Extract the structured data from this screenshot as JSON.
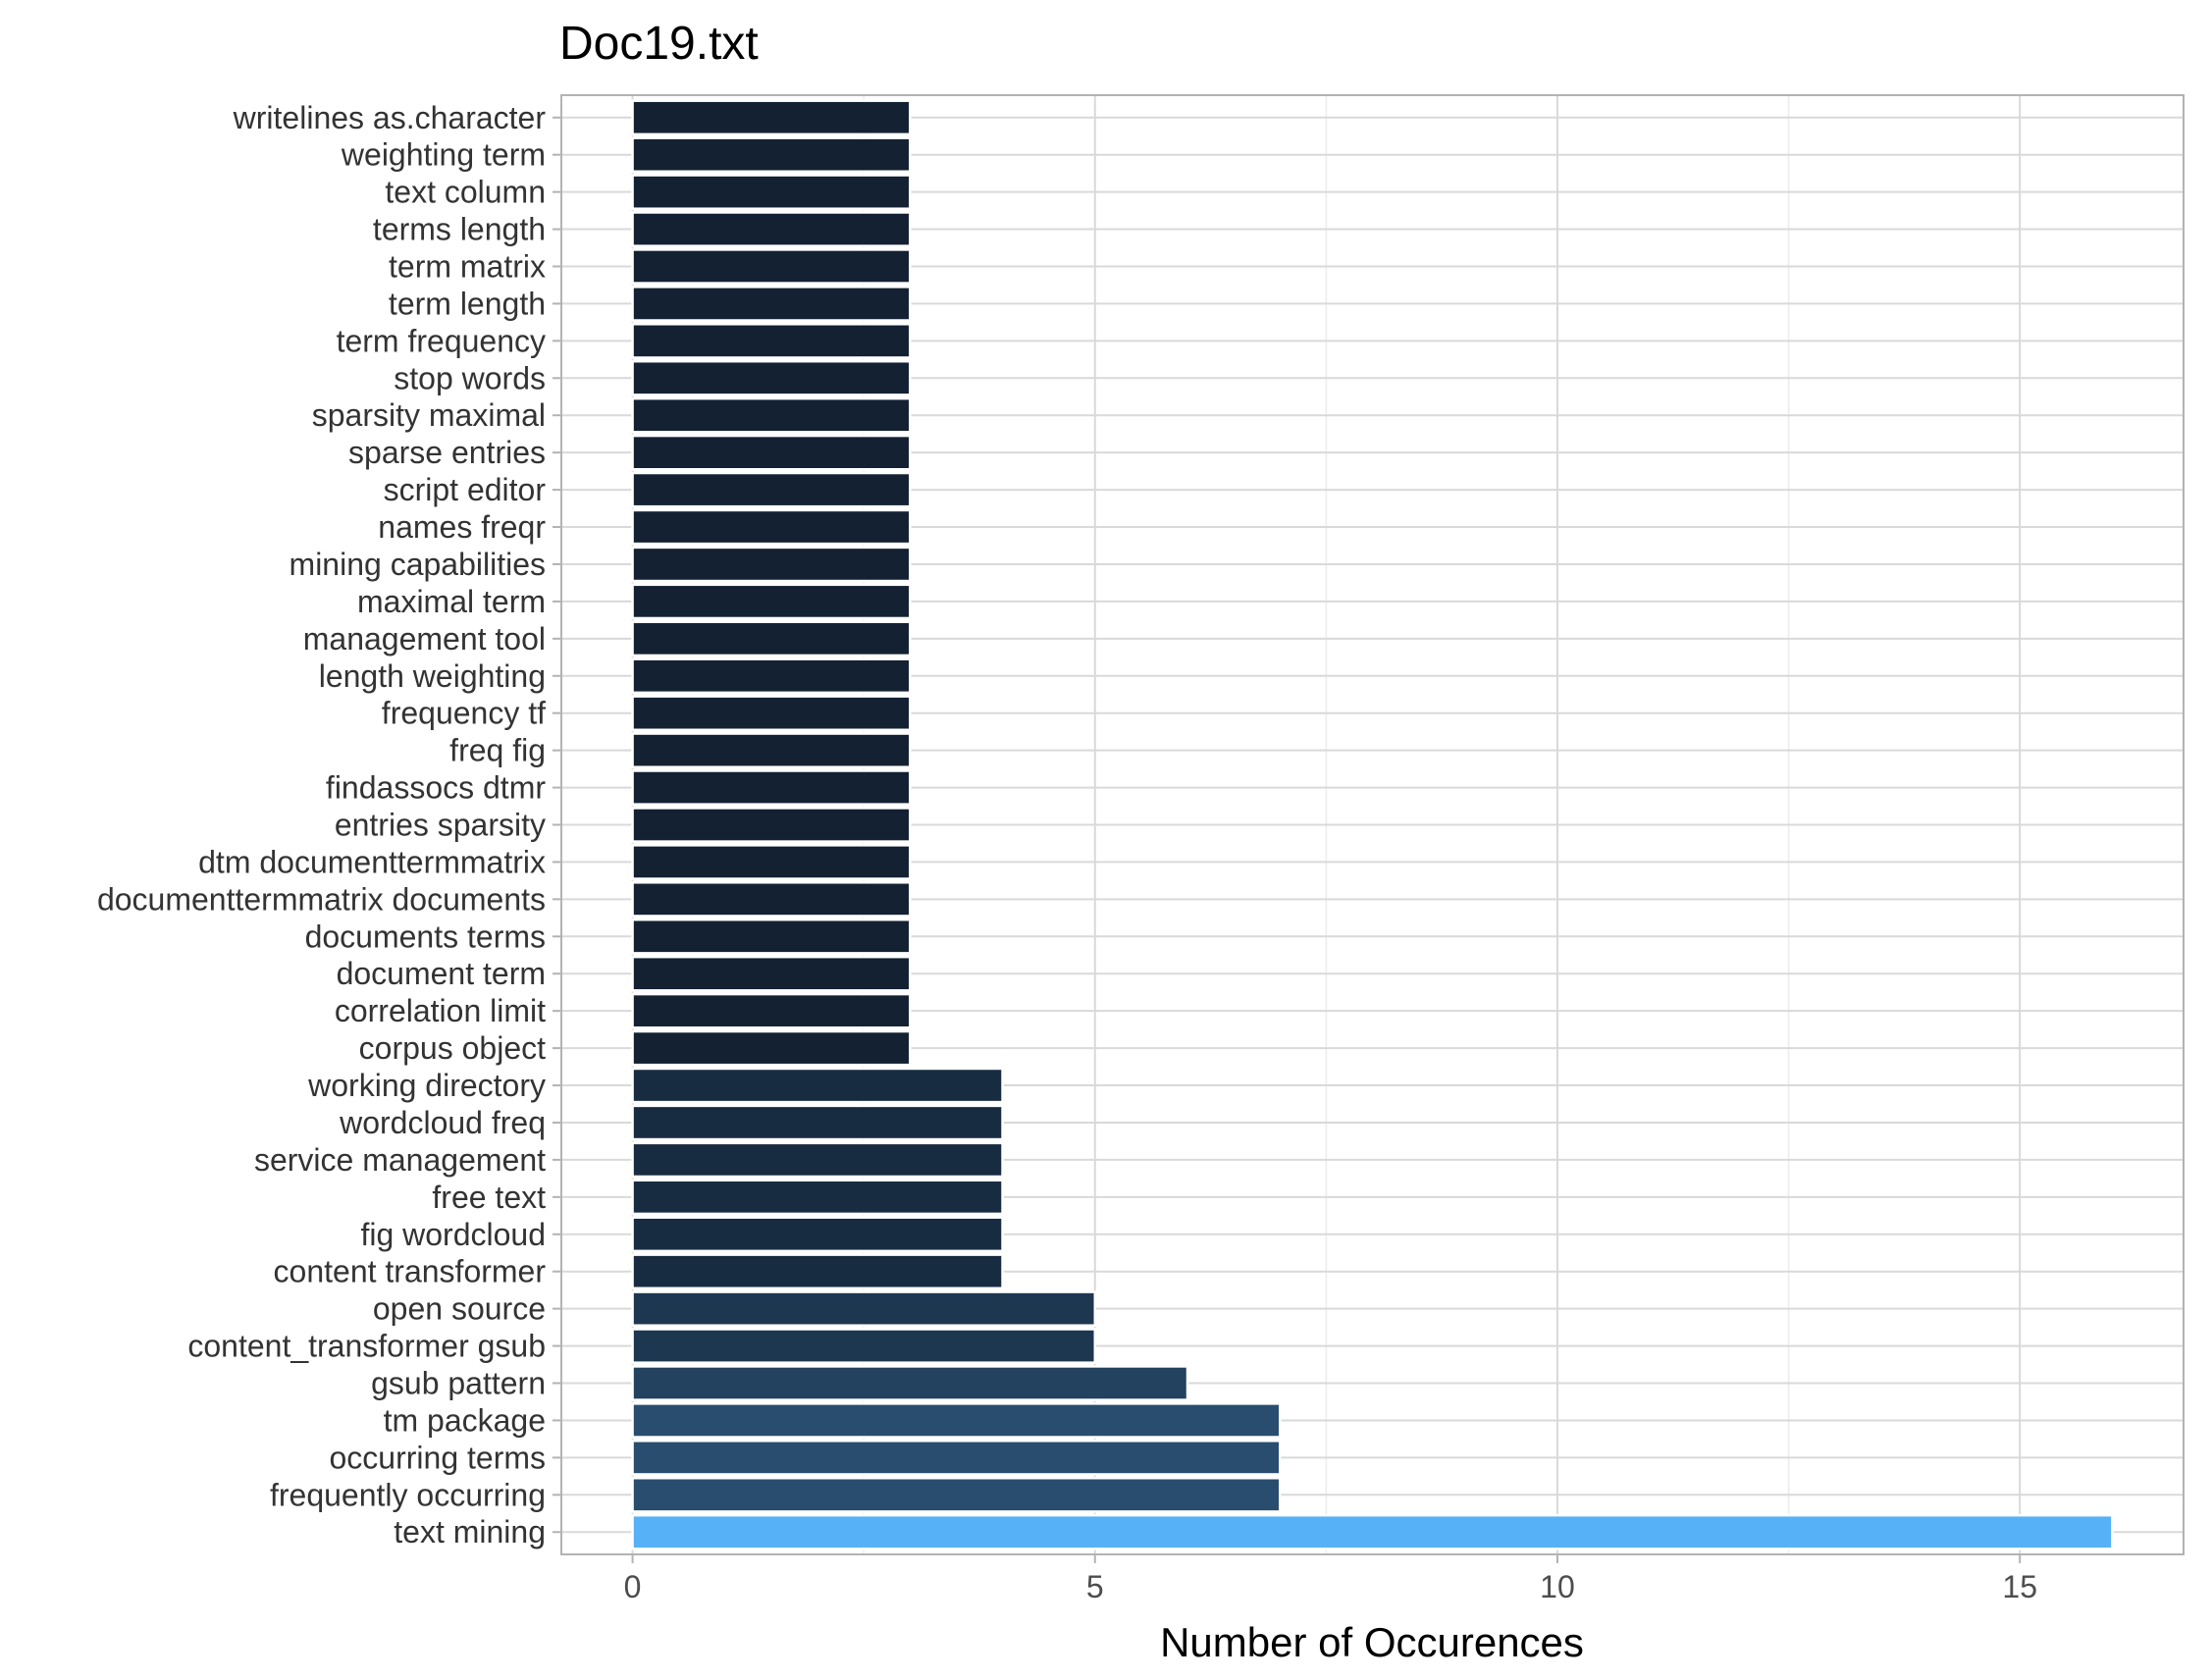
{
  "chart_data": {
    "type": "bar",
    "orientation": "horizontal",
    "title": "Doc19.txt",
    "xlabel": "Number of Occurences",
    "ylabel": "",
    "xlim": [
      -0.77,
      16.77
    ],
    "xticks": [
      0,
      5,
      10,
      15
    ],
    "grid": true,
    "legend": "none",
    "categories": [
      "writelines as.character",
      "weighting term",
      "text column",
      "terms length",
      "term matrix",
      "term length",
      "term frequency",
      "stop words",
      "sparsity maximal",
      "sparse entries",
      "script editor",
      "names freqr",
      "mining capabilities",
      "maximal term",
      "management tool",
      "length weighting",
      "frequency tf",
      "freq fig",
      "findassocs dtmr",
      "entries sparsity",
      "dtm documenttermmatrix",
      "documenttermmatrix documents",
      "documents terms",
      "document term",
      "correlation limit",
      "corpus object",
      "working directory",
      "wordcloud freq",
      "service management",
      "free text",
      "fig wordcloud",
      "content transformer",
      "open source",
      "content_transformer gsub",
      "gsub pattern",
      "tm package",
      "occurring terms",
      "frequently occurring",
      "text mining"
    ],
    "values": [
      3,
      3,
      3,
      3,
      3,
      3,
      3,
      3,
      3,
      3,
      3,
      3,
      3,
      3,
      3,
      3,
      3,
      3,
      3,
      3,
      3,
      3,
      3,
      3,
      3,
      3,
      4,
      4,
      4,
      4,
      4,
      4,
      5,
      5,
      6,
      7,
      7,
      7,
      16
    ],
    "color_scale": {
      "low": "#132132",
      "high": "#56B1F7"
    }
  },
  "colors": {
    "panel_border": "#b3b3b3",
    "grid_major": "#d9d9d9",
    "grid_minor": "#ececec",
    "tick_mark": "#b3b3b3"
  }
}
